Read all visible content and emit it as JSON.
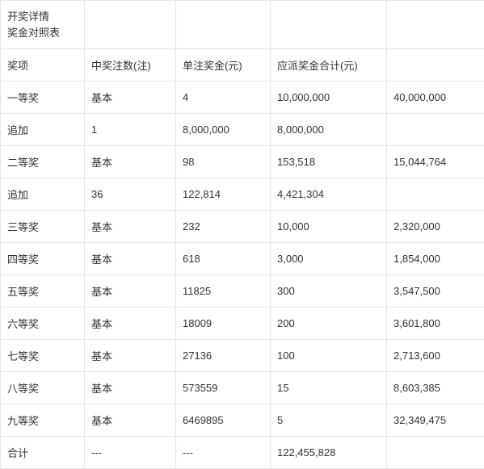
{
  "title_line1": "开奖详情",
  "title_line2": "奖金对照表",
  "headers": {
    "prize": "奖项",
    "win_count": "中奖注数(注)",
    "single_bonus": "单注奖金(元)",
    "total_bonus": "应派奖金合计(元)",
    "extra": ""
  },
  "rows": [
    {
      "prize": "一等奖",
      "type": "基本",
      "count": "4",
      "single": "10,000,000",
      "total": "40,000,000"
    },
    {
      "prize": "追加",
      "type": "1",
      "count": "8,000,000",
      "single": "8,000,000",
      "total": ""
    },
    {
      "prize": "二等奖",
      "type": "基本",
      "count": "98",
      "single": "153,518",
      "total": "15,044,764"
    },
    {
      "prize": "追加",
      "type": "36",
      "count": "122,814",
      "single": "4,421,304",
      "total": ""
    },
    {
      "prize": "三等奖",
      "type": "基本",
      "count": "232",
      "single": "10,000",
      "total": "2,320,000"
    },
    {
      "prize": "四等奖",
      "type": "基本",
      "count": "618",
      "single": "3,000",
      "total": "1,854,000"
    },
    {
      "prize": "五等奖",
      "type": "基本",
      "count": "11825",
      "single": "300",
      "total": "3,547,500"
    },
    {
      "prize": "六等奖",
      "type": "基本",
      "count": "18009",
      "single": "200",
      "total": "3,601,800"
    },
    {
      "prize": "七等奖",
      "type": "基本",
      "count": "27136",
      "single": "100",
      "total": "2,713,600"
    },
    {
      "prize": "八等奖",
      "type": "基本",
      "count": "573559",
      "single": "15",
      "total": "8,603,385"
    },
    {
      "prize": "九等奖",
      "type": "基本",
      "count": "6469895",
      "single": "5",
      "total": "32,349,475"
    },
    {
      "prize": "合计",
      "type": "---",
      "count": "---",
      "single": "122,455,828",
      "total": ""
    }
  ],
  "colors": {
    "border": "#e6e6e6",
    "text": "#333333",
    "background": "#ffffff"
  }
}
